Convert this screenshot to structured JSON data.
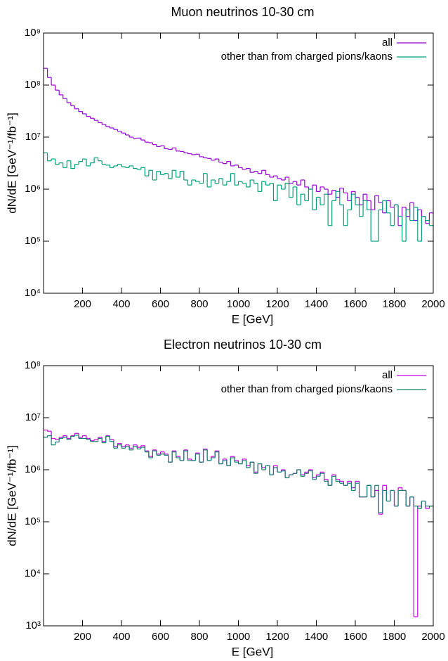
{
  "chart_data": [
    {
      "type": "histogram",
      "title": "Muon neutrinos 10-30 cm",
      "xlabel": "E [GeV]",
      "ylabel": "dN/dE [GeV⁻¹/fb⁻¹]",
      "xlim": [
        0,
        2000
      ],
      "xticks": [
        200,
        400,
        600,
        800,
        1000,
        1200,
        1400,
        1600,
        1800,
        2000
      ],
      "ylim": [
        10000,
        1000000000
      ],
      "yscale": "log",
      "yticks": [
        {
          "value": 10000,
          "label": "10⁴"
        },
        {
          "value": 100000,
          "label": "10⁵"
        },
        {
          "value": 1000000,
          "label": "10⁶"
        },
        {
          "value": 10000000,
          "label": "10⁷"
        },
        {
          "value": 100000000,
          "label": "10⁸"
        },
        {
          "value": 1000000000,
          "label": "10⁹"
        }
      ],
      "legend": "upper right",
      "bins": [
        0,
        20,
        40,
        60,
        80,
        100,
        120,
        140,
        160,
        180,
        200,
        220,
        240,
        260,
        280,
        300,
        320,
        340,
        360,
        380,
        400,
        420,
        440,
        460,
        480,
        500,
        520,
        540,
        560,
        580,
        600,
        620,
        640,
        660,
        680,
        700,
        720,
        740,
        760,
        780,
        800,
        820,
        840,
        860,
        880,
        900,
        920,
        940,
        960,
        980,
        1000,
        1020,
        1040,
        1060,
        1080,
        1100,
        1120,
        1140,
        1160,
        1180,
        1200,
        1220,
        1240,
        1260,
        1280,
        1300,
        1320,
        1340,
        1360,
        1380,
        1400,
        1420,
        1440,
        1460,
        1480,
        1500,
        1520,
        1540,
        1560,
        1580,
        1600,
        1620,
        1640,
        1660,
        1680,
        1700,
        1720,
        1740,
        1760,
        1780,
        1800,
        1820,
        1840,
        1860,
        1880,
        1900,
        1920,
        1940,
        1960,
        1980,
        2000
      ],
      "series": [
        {
          "name": "all",
          "color": "#9400d3",
          "values": [
            210000000.0,
            140000000.0,
            100000000.0,
            80000000.0,
            65000000.0,
            55000000.0,
            46000000.0,
            40000000.0,
            35000000.0,
            31000000.0,
            28000000.0,
            25000000.0,
            23000000.0,
            21000000.0,
            19000000.0,
            17500000.0,
            16000000.0,
            15000000.0,
            14000000.0,
            13000000.0,
            12000000.0,
            11000000.0,
            10000000.0,
            9500000.0,
            9600000.0,
            8800000.0,
            8000000.0,
            7800000.0,
            7200000.0,
            6600000.0,
            6800000.0,
            6000000.0,
            5800000.0,
            6200000.0,
            5400000.0,
            5300000.0,
            5000000.0,
            4800000.0,
            4600000.0,
            4700000.0,
            4200000.0,
            4000000.0,
            3900000.0,
            3600000.0,
            3800000.0,
            3300000.0,
            3100000.0,
            3400000.0,
            2800000.0,
            2900000.0,
            2600000.0,
            2400000.0,
            2500000.0,
            2100000.0,
            2200000.0,
            2000000.0,
            2300000.0,
            1900000.0,
            1700000.0,
            1800000.0,
            1600000.0,
            1500000.0,
            1700000.0,
            1300000.0,
            1400000.0,
            1200000.0,
            1500000.0,
            1100000.0,
            1000000.0,
            1200000.0,
            900000.0,
            1100000.0,
            1000000.0,
            800000.0,
            950000.0,
            700000.0,
            1050000.0,
            850000.0,
            600000.0,
            900000.0,
            700000.0,
            500000.0,
            800000.0,
            600000.0,
            400000.0,
            750000.0,
            550000.0,
            350000.0,
            600000.0,
            450000.0,
            500000.0,
            200000.0,
            450000.0,
            300000.0,
            550000.0,
            250000.0,
            400000.0,
            300000.0,
            220000.0,
            350000.0
          ]
        },
        {
          "name": "other than from charged pions/kaons",
          "color": "#00a07a",
          "values": [
            5000000.0,
            3500000.0,
            3800000.0,
            3000000.0,
            3200000.0,
            2600000.0,
            3500000.0,
            2500000.0,
            3000000.0,
            3400000.0,
            3800000.0,
            2800000.0,
            3200000.0,
            4000000.0,
            3500000.0,
            3000000.0,
            2900000.0,
            2600000.0,
            2800000.0,
            3000000.0,
            2700000.0,
            2600000.0,
            2800000.0,
            2500000.0,
            2400000.0,
            2600000.0,
            1800000.0,
            2300000.0,
            1500000.0,
            2200000.0,
            1900000.0,
            2000000.0,
            1600000.0,
            2300000.0,
            1700000.0,
            2200000.0,
            1500000.0,
            1200000.0,
            1500000.0,
            1400000.0,
            1300000.0,
            2000000.0,
            1100000.0,
            1500000.0,
            1300000.0,
            1600000.0,
            1200000.0,
            1400000.0,
            2000000.0,
            1200000.0,
            1400000.0,
            1300000.0,
            1100000.0,
            1500000.0,
            1300000.0,
            900000.0,
            1400000.0,
            1200000.0,
            1300000.0,
            600000.0,
            1200000.0,
            1000000.0,
            1300000.0,
            700000.0,
            1100000.0,
            500000.0,
            800000.0,
            600000.0,
            1000000.0,
            400000.0,
            700000.0,
            500000.0,
            800000.0,
            200000.0,
            600000.0,
            900000.0,
            500000.0,
            200000.0,
            400000.0,
            800000.0,
            500000.0,
            300000.0,
            600000.0,
            400000.0,
            100000.0,
            100000.0,
            400000.0,
            600000.0,
            350000.0,
            200000.0,
            500000.0,
            300000.0,
            100000.0,
            400000.0,
            250000.0,
            450000.0,
            100000.0,
            300000.0,
            250000.0,
            200000.0
          ]
        }
      ]
    },
    {
      "type": "histogram",
      "title": "Electron neutrinos 10-30 cm",
      "xlabel": "E [GeV]",
      "ylabel": "dN/dE [GeV⁻¹/fb⁻¹]",
      "xlim": [
        0,
        2000
      ],
      "xticks": [
        200,
        400,
        600,
        800,
        1000,
        1200,
        1400,
        1600,
        1800,
        2000
      ],
      "ylim": [
        1000,
        100000000
      ],
      "yscale": "log",
      "yticks": [
        {
          "value": 1000,
          "label": "10³"
        },
        {
          "value": 10000,
          "label": "10⁴"
        },
        {
          "value": 100000,
          "label": "10⁵"
        },
        {
          "value": 1000000,
          "label": "10⁶"
        },
        {
          "value": 10000000,
          "label": "10⁷"
        },
        {
          "value": 100000000,
          "label": "10⁸"
        }
      ],
      "legend": "upper right",
      "bins": [
        0,
        20,
        40,
        60,
        80,
        100,
        120,
        140,
        160,
        180,
        200,
        220,
        240,
        260,
        280,
        300,
        320,
        340,
        360,
        380,
        400,
        420,
        440,
        460,
        480,
        500,
        520,
        540,
        560,
        580,
        600,
        620,
        640,
        660,
        680,
        700,
        720,
        740,
        760,
        780,
        800,
        820,
        840,
        860,
        880,
        900,
        920,
        940,
        960,
        980,
        1000,
        1020,
        1040,
        1060,
        1080,
        1100,
        1120,
        1140,
        1160,
        1180,
        1200,
        1220,
        1240,
        1260,
        1280,
        1300,
        1320,
        1340,
        1360,
        1380,
        1400,
        1420,
        1440,
        1460,
        1480,
        1500,
        1520,
        1540,
        1560,
        1580,
        1600,
        1620,
        1640,
        1660,
        1680,
        1700,
        1720,
        1740,
        1760,
        1780,
        1800,
        1820,
        1840,
        1860,
        1880,
        1900,
        1920,
        1940,
        1960,
        1980,
        2000
      ],
      "series": [
        {
          "name": "all",
          "color": "#c000e0",
          "values": [
            5800000.0,
            5500000.0,
            4000000.0,
            3800000.0,
            4200000.0,
            4500000.0,
            4000000.0,
            4500000.0,
            5000000.0,
            4200000.0,
            4500000.0,
            4000000.0,
            3600000.0,
            3800000.0,
            4200000.0,
            3500000.0,
            4500000.0,
            3800000.0,
            2800000.0,
            3200000.0,
            2800000.0,
            3000000.0,
            2600000.0,
            3000000.0,
            2700000.0,
            2900000.0,
            2300000.0,
            1800000.0,
            2400000.0,
            2000000.0,
            2200000.0,
            2000000.0,
            1400000.0,
            2300000.0,
            1800000.0,
            1500000.0,
            2400000.0,
            1600000.0,
            1500000.0,
            2100000.0,
            1400000.0,
            2500000.0,
            1500000.0,
            1800000.0,
            2300000.0,
            1300000.0,
            1600000.0,
            1200000.0,
            1800000.0,
            1500000.0,
            1300000.0,
            1600000.0,
            1200000.0,
            1400000.0,
            900000.0,
            1300000.0,
            1100000.0,
            1200000.0,
            800000.0,
            1200000.0,
            900000.0,
            1000000.0,
            700000.0,
            800000.0,
            850000.0,
            1000000.0,
            800000.0,
            900000.0,
            1000000.0,
            700000.0,
            800000.0,
            900000.0,
            650000.0,
            500000.0,
            800000.0,
            650000.0,
            600000.0,
            500000.0,
            600000.0,
            450000.0,
            600000.0,
            300000.0,
            300000.0,
            500000.0,
            300000.0,
            400000.0,
            140000.0,
            500000.0,
            250000.0,
            400000.0,
            200000.0,
            450000.0,
            400000.0,
            200000.0,
            300000.0,
            1500.0,
            200000.0,
            250000.0,
            180000.0,
            200000.0
          ]
        },
        {
          "name": "other than from charged pions/kaons",
          "color": "#12806e",
          "values": [
            4200000.0,
            4500000.0,
            3000000.0,
            3400000.0,
            4000000.0,
            4200000.0,
            3800000.0,
            4400000.0,
            4600000.0,
            4000000.0,
            4000000.0,
            3800000.0,
            3500000.0,
            3500000.0,
            4000000.0,
            3300000.0,
            4400000.0,
            3500000.0,
            2600000.0,
            3000000.0,
            2600000.0,
            2800000.0,
            2400000.0,
            2800000.0,
            2500000.0,
            2700000.0,
            2200000.0,
            1700000.0,
            2300000.0,
            1900000.0,
            2000000.0,
            1900000.0,
            1400000.0,
            2200000.0,
            1700000.0,
            1500000.0,
            2300000.0,
            1500000.0,
            1500000.0,
            2000000.0,
            1400000.0,
            2400000.0,
            1500000.0,
            1700000.0,
            2200000.0,
            1300000.0,
            1500000.0,
            1200000.0,
            1700000.0,
            1400000.0,
            1300000.0,
            1500000.0,
            1100000.0,
            1400000.0,
            850000.0,
            1300000.0,
            1000000.0,
            1200000.0,
            800000.0,
            1100000.0,
            900000.0,
            950000.0,
            700000.0,
            800000.0,
            850000.0,
            1000000.0,
            750000.0,
            850000.0,
            950000.0,
            650000.0,
            750000.0,
            850000.0,
            600000.0,
            500000.0,
            750000.0,
            600000.0,
            550000.0,
            500000.0,
            550000.0,
            400000.0,
            550000.0,
            300000.0,
            300000.0,
            500000.0,
            300000.0,
            500000.0,
            150000.0,
            400000.0,
            250000.0,
            400000.0,
            200000.0,
            400000.0,
            400000.0,
            200000.0,
            300000.0,
            200000.0,
            180000.0,
            250000.0,
            200000.0,
            200000.0
          ]
        }
      ]
    }
  ]
}
